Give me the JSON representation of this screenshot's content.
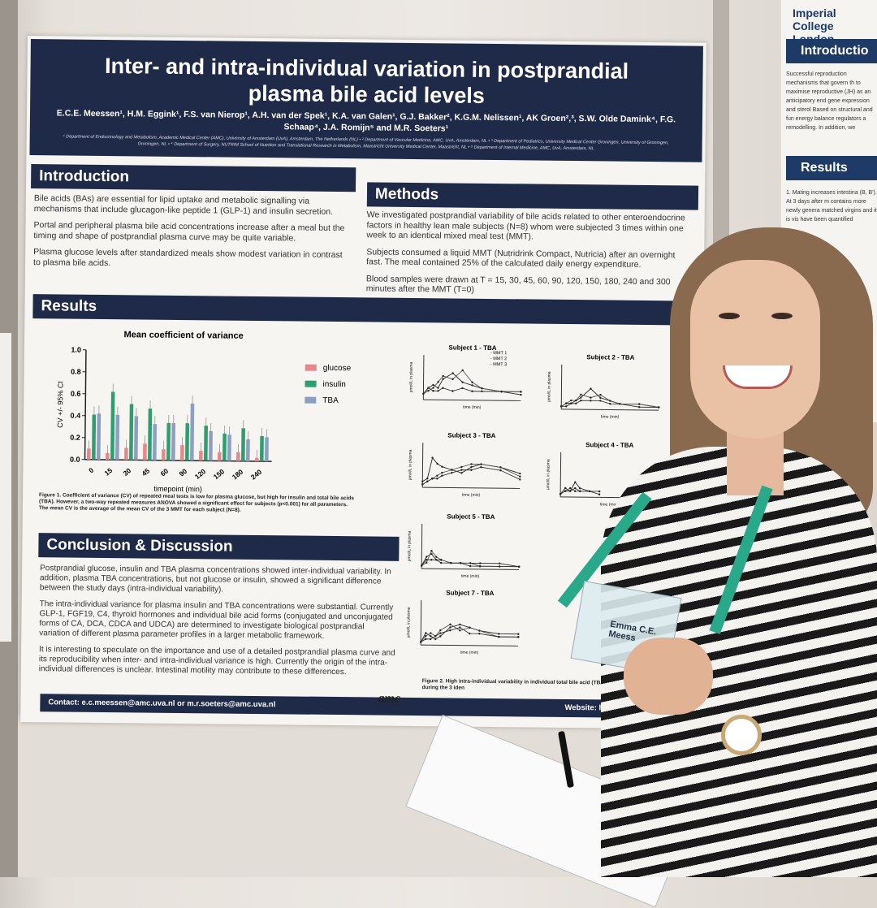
{
  "poster": {
    "title": "Inter- and intra-individual variation in postprandial plasma bile acid levels",
    "authors": "E.C.E. Meessen¹, H.M. Eggink¹, F.S. van Nierop¹, A.H. van der Spek¹, K.A. van Galen¹, G.J. Bakker², K.G.M. Nelissen¹, AK Groen²,³, S.W. Olde Damink⁴, F.G. Schaap⁴, J.A. Romijn⁵ and M.R. Soeters¹",
    "affiliations": "¹ Department of Endocrinology and Metabolism, Academic Medical Center (AMC), University of Amsterdam (UvA), Amsterdam, The Netherlands (NL) • ² Department of Vascular Medicine, AMC, UvA, Amsterdam, NL • ³ Department of Pediatrics, University Medical Center Groningen, University of Groningen, Groningen, NL • ⁴ Department of Surgery, NUTRIM School of Nutrition and Translational Research in Metabolism, Maastricht University Medical Center, Maastricht, NL • ⁵ Department of Internal Medicine, AMC, UvA, Amsterdam, NL",
    "introduction": {
      "heading": "Introduction",
      "paragraphs": [
        "Bile acids (BAs) are essential for lipid uptake and metabolic signalling via mechanisms that include glucagon-like peptide 1 (GLP-1) and insulin secretion.",
        "Portal and peripheral plasma bile acid concentrations increase after a meal but the timing and shape of postprandial plasma curve may be quite variable.",
        "Plasma glucose levels after standardized meals show modest variation in contrast to plasma bile acids."
      ]
    },
    "methods": {
      "heading": "Methods",
      "paragraphs": [
        "We investigated postprandial variability of bile acids related to other enteroendocrine factors in healthy lean male subjects (N=8) whom were subjected 3 times within one week to an identical mixed meal test (MMT).",
        "Subjects consumed a liquid MMT (Nutridrink Compact, Nutricia) after an overnight fast. The meal contained 25% of the calculated daily energy expenditure.",
        "Blood samples were drawn at T = 15, 30, 45, 60, 90, 120, 150, 180, 240 and 300 minutes after the MMT (T=0)"
      ]
    },
    "results_heading": "Results",
    "figure1_caption": "Figure 1. Coefficient of variance (CV) of repeated meal tests is low for plasma glucose, but high for insulin and total bile acids (TBA). However, a two-way repeated measures ANOVA showed a significant effect for subjects (p<0.001) for all parameters. The mean CV is the average of the mean CV of the 3 MMT for each subject (N=8).",
    "figure2_caption": "Figure 2. High intra-individual variability in individual total bile acid (TBA) response curves during the 3 iden",
    "conclusion": {
      "heading": "Conclusion & Discussion",
      "paragraphs": [
        "Postprandial glucose, insulin and TBA plasma concentrations showed inter-individual variability. In addition, plasma TBA concentrations, but not glucose or insulin, showed a significant difference between the study days (intra-individual variability).",
        "The intra-individual variance for plasma insulin and TBA concentrations were substantial. Currently GLP-1, FGF19, C4, thyroid hormones and individual bile acid forms (conjugated and unconjugated forms of CA, DCA, CDCA and UDCA) are determined to investigate biological postprandial variation of different plasma parameter profiles in a larger metabolic framework.",
        "It is interesting to speculate on the importance and use of a detailed postprandial plasma curve and its reproducibility when inter- and intra-individual variance is high. Currently the origin of the intra-individual differences is unclear. Intestinal motility may contribute to these differences."
      ]
    },
    "footer_contact": "Contact: e.c.meessen@amc.uva.nl or m.r.soeters@amc.uva.nl",
    "footer_website": "Website: http://metabolism.",
    "logo_text": "amc"
  },
  "chart_data": [
    {
      "type": "bar",
      "title": "Mean coefficient of variance",
      "xlabel": "timepoint (min)",
      "ylabel": "CV +/- 95% CI",
      "categories": [
        "0",
        "15",
        "30",
        "45",
        "60",
        "90",
        "120",
        "150",
        "180",
        "240"
      ],
      "ylim": [
        0,
        1.0
      ],
      "yticks": [
        "0.0",
        "0.2",
        "0.4",
        "0.6",
        "0.8",
        "1.0"
      ],
      "legend_position": "right",
      "series": [
        {
          "name": "glucose",
          "color": "#e6878c",
          "values": [
            0.1,
            0.06,
            0.11,
            0.15,
            0.1,
            0.14,
            0.09,
            0.08,
            0.08,
            0.03
          ]
        },
        {
          "name": "insulin",
          "color": "#2e9e6e",
          "values": [
            0.41,
            0.62,
            0.51,
            0.47,
            0.34,
            0.34,
            0.32,
            0.25,
            0.3,
            0.23
          ]
        },
        {
          "name": "TBA",
          "color": "#8c9fc0",
          "values": [
            0.42,
            0.41,
            0.4,
            0.33,
            0.34,
            0.52,
            0.27,
            0.24,
            0.2,
            0.22
          ]
        }
      ]
    },
    {
      "type": "line",
      "title": "Subject 1 - TBA",
      "ylabel": "µmol/L in plasma",
      "xlabel": "time (min)",
      "legend": [
        "MMT 1",
        "MMT 2",
        "MMT 3"
      ],
      "x": [
        0,
        15,
        30,
        45,
        60,
        90,
        120,
        150,
        180,
        240,
        300
      ],
      "series": [
        {
          "values": [
            2,
            4,
            5,
            4,
            7,
            9,
            6,
            5,
            4,
            3,
            3
          ]
        },
        {
          "values": [
            2,
            3,
            4,
            6,
            8,
            7,
            10,
            6,
            4,
            3,
            3
          ]
        },
        {
          "values": [
            2,
            4,
            3,
            3,
            4,
            3,
            4,
            3,
            3,
            3,
            2
          ]
        }
      ]
    },
    {
      "type": "line",
      "title": "Subject 2 - TBA",
      "ylabel": "µmol/L in plasma",
      "xlabel": "time (min)",
      "x": [
        0,
        15,
        30,
        45,
        60,
        90,
        120,
        150,
        180,
        240,
        300
      ],
      "series": [
        {
          "values": [
            1,
            2,
            2,
            3,
            4,
            7,
            4,
            3,
            2,
            2,
            1
          ]
        },
        {
          "values": [
            1,
            2,
            3,
            3,
            5,
            4,
            5,
            3,
            2,
            2,
            1
          ]
        },
        {
          "values": [
            1,
            1,
            2,
            2,
            3,
            3,
            3,
            2,
            2,
            1,
            1
          ]
        }
      ]
    },
    {
      "type": "line",
      "title": "Subject 3 - TBA",
      "ylabel": "µmol/L in plasma",
      "xlabel": "time (min)",
      "x": [
        0,
        15,
        30,
        45,
        60,
        90,
        120,
        150,
        180,
        240,
        300
      ],
      "series": [
        {
          "values": [
            2,
            3,
            10,
            8,
            7,
            6,
            5,
            7,
            8,
            7,
            5
          ]
        },
        {
          "values": [
            1,
            2,
            3,
            4,
            5,
            6,
            7,
            8,
            8,
            7,
            4
          ]
        },
        {
          "values": [
            1,
            2,
            3,
            3,
            4,
            5,
            6,
            6,
            7,
            6,
            3
          ]
        }
      ]
    },
    {
      "type": "line",
      "title": "Subject 4 - TBA",
      "ylabel": "µmol/L in plasma",
      "xlabel": "time (min)",
      "x": [
        0,
        15,
        30,
        45,
        60,
        90,
        120
      ],
      "series": [
        {
          "values": [
            1,
            3,
            2,
            5,
            3,
            2,
            2
          ]
        },
        {
          "values": [
            1,
            2,
            3,
            2,
            2,
            2,
            2
          ]
        },
        {
          "values": [
            1,
            2,
            2,
            3,
            2,
            2,
            1
          ]
        }
      ]
    },
    {
      "type": "line",
      "title": "Subject 5 - TBA",
      "ylabel": "µmol/L in plasma",
      "xlabel": "time (min)",
      "x": [
        0,
        15,
        30,
        45,
        60,
        90,
        120,
        150,
        180,
        240,
        300
      ],
      "series": [
        {
          "values": [
            1,
            4,
            5,
            3,
            3,
            2,
            2,
            2,
            2,
            2,
            1
          ]
        },
        {
          "values": [
            1,
            2,
            6,
            4,
            3,
            2,
            2,
            2,
            1,
            1,
            1
          ]
        },
        {
          "values": [
            1,
            3,
            3,
            3,
            2,
            2,
            2,
            1,
            1,
            1,
            1
          ]
        }
      ]
    },
    {
      "type": "line",
      "title": "Subject 7 - TBA",
      "ylabel": "µmol/L in plasma",
      "xlabel": "time (min)",
      "x": [
        0,
        15,
        30,
        45,
        60,
        90,
        120,
        150,
        180,
        240,
        300
      ],
      "series": [
        {
          "values": [
            1,
            4,
            3,
            2,
            3,
            6,
            7,
            6,
            5,
            4,
            4
          ]
        },
        {
          "values": [
            1,
            3,
            4,
            3,
            5,
            7,
            5,
            6,
            5,
            3,
            3
          ]
        },
        {
          "values": [
            1,
            2,
            2,
            3,
            4,
            5,
            6,
            4,
            4,
            3,
            3
          ]
        }
      ]
    }
  ],
  "right_poster": {
    "logo": "Imperial College London",
    "intro_heading": "Introductio",
    "intro_text": "Successful reproduction mechanisms that govern th to maximise reproductive (JH) as an anticipatory end gene expression and sterol Based on structural and fun energy balance regulators a remodelling. In addition, we",
    "results_heading": "Results",
    "results_text": "1. Mating increases intestina (B, B'). At 3 days after m contains more newly genera matched virgins and it is vis have been quantified"
  },
  "badge": {
    "name": "Emma C.E. Meess"
  }
}
